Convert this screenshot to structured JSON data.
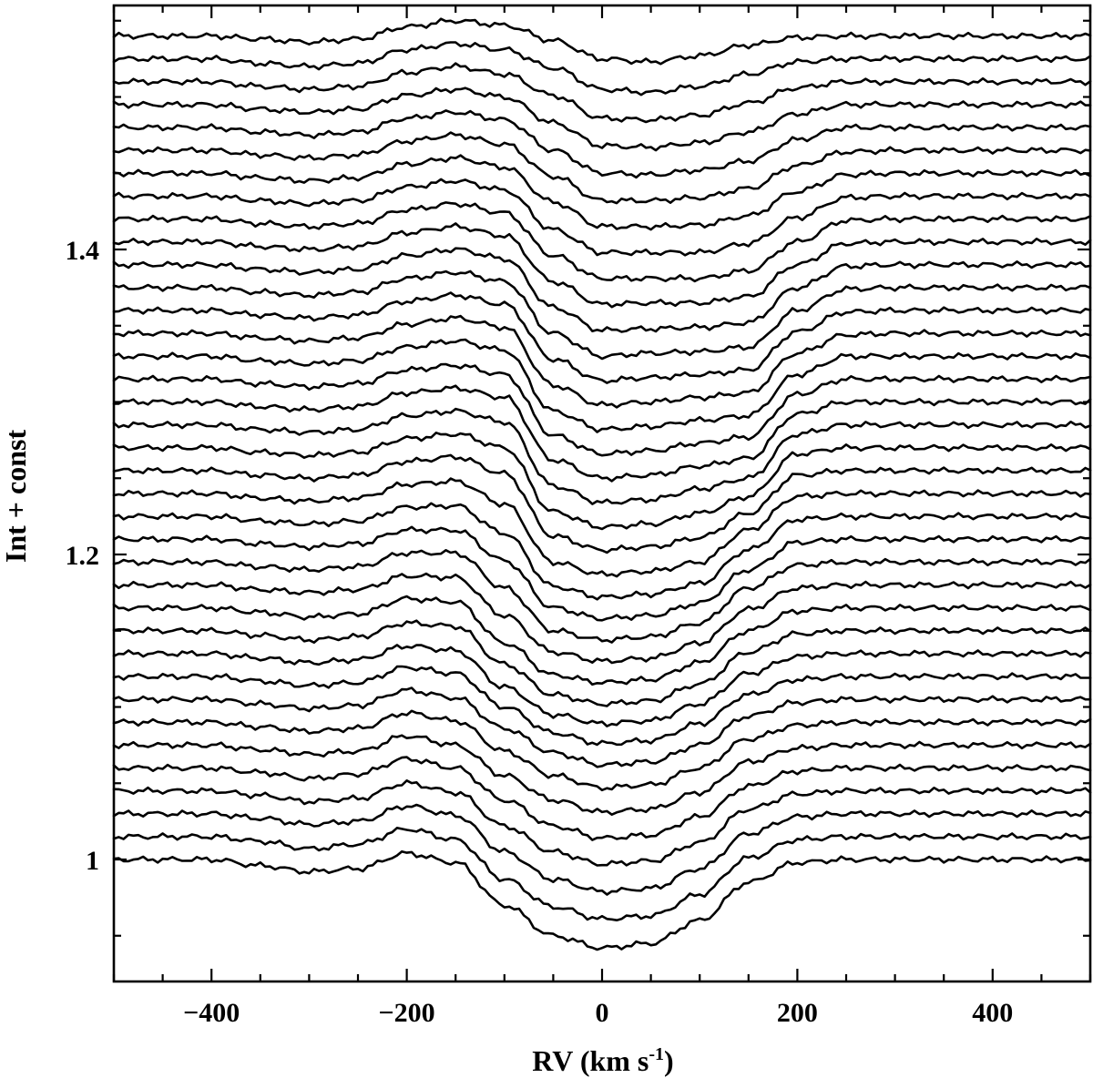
{
  "chart_data": {
    "type": "line",
    "title": "",
    "xlabel": "RV (km s",
    "xlabel_sup": "-1",
    "xlabel_close": ")",
    "ylabel": "Int + const",
    "xlim": [
      -500,
      500
    ],
    "ylim": [
      0.92,
      1.56
    ],
    "x_ticks_major": [
      -400,
      -200,
      0,
      200,
      400
    ],
    "x_tick_labels": [
      "−400",
      "−200",
      "0",
      "200",
      "400"
    ],
    "y_ticks_major": [
      1.0,
      1.2,
      1.4
    ],
    "y_tick_labels": [
      "1",
      "1.2",
      "1.4"
    ],
    "x_ticks_minor_step": 50,
    "y_ticks_minor_step": 0.05,
    "grid": false,
    "legend": "none",
    "n_profiles": 37,
    "profile_offset_step": 0.015,
    "continuum_level": 1.0,
    "rv_sampling": [
      -500,
      -450,
      -400,
      -350,
      -300,
      -250,
      -200,
      -150,
      -100,
      -50,
      0,
      50,
      100,
      150,
      200,
      250,
      300,
      350,
      400,
      450,
      500
    ],
    "series": [
      {
        "values": [
          1.0,
          1.0,
          1.0,
          0.996,
          0.992,
          0.994,
          1.004,
          0.998,
          0.97,
          0.95,
          0.942,
          0.945,
          0.96,
          0.985,
          0.998,
          1.0,
          1.0,
          1.0,
          1.0,
          1.0,
          1.0
        ]
      },
      {
        "values": [
          1.0,
          1.0,
          1.0,
          0.997,
          0.992,
          0.995,
          1.005,
          0.998,
          0.972,
          0.954,
          0.946,
          0.948,
          0.962,
          0.986,
          0.998,
          1.0,
          1.0,
          1.0,
          1.0,
          1.0,
          1.0
        ]
      },
      {
        "values": [
          1.0,
          1.0,
          1.0,
          0.997,
          0.993,
          0.995,
          1.005,
          0.999,
          0.975,
          0.957,
          0.949,
          0.951,
          0.964,
          0.987,
          0.998,
          1.0,
          1.0,
          1.0,
          1.0,
          1.0,
          1.0
        ]
      },
      {
        "values": [
          1.0,
          1.0,
          1.0,
          0.997,
          0.993,
          0.995,
          1.005,
          0.999,
          0.977,
          0.96,
          0.952,
          0.954,
          0.966,
          0.988,
          0.998,
          1.0,
          1.0,
          1.0,
          1.0,
          1.0,
          1.0
        ]
      },
      {
        "values": [
          1.0,
          1.0,
          1.0,
          0.997,
          0.993,
          0.996,
          1.006,
          1.0,
          0.979,
          0.962,
          0.954,
          0.956,
          0.968,
          0.988,
          0.998,
          1.0,
          1.0,
          1.0,
          1.0,
          1.0,
          1.0
        ]
      },
      {
        "values": [
          1.0,
          1.0,
          1.0,
          0.997,
          0.994,
          0.996,
          1.006,
          1.0,
          0.98,
          0.964,
          0.956,
          0.958,
          0.969,
          0.989,
          0.998,
          1.0,
          1.0,
          1.0,
          1.0,
          1.0,
          1.0
        ]
      },
      {
        "values": [
          1.0,
          1.0,
          1.0,
          0.997,
          0.994,
          0.996,
          1.006,
          1.001,
          0.981,
          0.965,
          0.957,
          0.959,
          0.97,
          0.989,
          0.998,
          1.0,
          1.0,
          1.0,
          1.0,
          1.0,
          1.0
        ]
      },
      {
        "values": [
          1.0,
          1.0,
          1.0,
          0.997,
          0.994,
          0.996,
          1.006,
          1.001,
          0.981,
          0.965,
          0.957,
          0.959,
          0.97,
          0.989,
          0.998,
          1.0,
          1.0,
          1.0,
          1.0,
          1.0,
          1.0
        ]
      },
      {
        "values": [
          1.0,
          1.0,
          1.0,
          0.997,
          0.994,
          0.996,
          1.006,
          1.002,
          0.98,
          0.963,
          0.956,
          0.958,
          0.969,
          0.988,
          0.998,
          1.0,
          1.0,
          1.0,
          1.0,
          1.0,
          1.0
        ]
      },
      {
        "values": [
          1.0,
          1.0,
          1.0,
          0.997,
          0.994,
          0.996,
          1.005,
          1.002,
          0.978,
          0.96,
          0.954,
          0.956,
          0.967,
          0.987,
          0.998,
          1.0,
          1.0,
          1.0,
          1.0,
          1.0,
          1.0
        ]
      },
      {
        "values": [
          1.0,
          1.0,
          1.0,
          0.997,
          0.994,
          0.996,
          1.005,
          1.003,
          0.978,
          0.958,
          0.952,
          0.954,
          0.965,
          0.986,
          0.998,
          1.0,
          1.0,
          1.0,
          1.0,
          1.0,
          1.0
        ]
      },
      {
        "values": [
          1.0,
          1.0,
          1.0,
          0.997,
          0.994,
          0.996,
          1.006,
          1.004,
          0.977,
          0.956,
          0.951,
          0.953,
          0.964,
          0.985,
          0.998,
          1.0,
          1.0,
          1.0,
          1.0,
          1.0,
          1.0
        ]
      },
      {
        "values": [
          1.0,
          1.0,
          1.0,
          0.997,
          0.995,
          0.997,
          1.006,
          1.005,
          0.98,
          0.956,
          0.95,
          0.952,
          0.962,
          0.984,
          0.998,
          1.0,
          1.0,
          1.0,
          1.0,
          1.0,
          1.0
        ]
      },
      {
        "values": [
          1.0,
          1.0,
          1.0,
          0.997,
          0.995,
          0.997,
          1.006,
          1.006,
          0.983,
          0.955,
          0.949,
          0.951,
          0.96,
          0.983,
          0.998,
          1.0,
          1.0,
          1.0,
          1.0,
          1.0,
          1.0
        ]
      },
      {
        "values": [
          1.0,
          1.0,
          1.0,
          0.997,
          0.995,
          0.997,
          1.006,
          1.006,
          0.986,
          0.955,
          0.948,
          0.95,
          0.958,
          0.98,
          0.998,
          1.0,
          1.0,
          1.0,
          1.0,
          1.0,
          1.0
        ]
      },
      {
        "values": [
          1.0,
          1.0,
          1.0,
          0.997,
          0.995,
          0.997,
          1.006,
          1.007,
          0.989,
          0.954,
          0.947,
          0.949,
          0.956,
          0.978,
          0.998,
          1.0,
          1.0,
          1.0,
          1.0,
          1.0,
          1.0
        ]
      },
      {
        "values": [
          1.0,
          1.0,
          1.0,
          0.997,
          0.995,
          0.997,
          1.006,
          1.008,
          0.993,
          0.955,
          0.947,
          0.949,
          0.955,
          0.976,
          0.998,
          1.0,
          1.0,
          1.0,
          1.0,
          1.0,
          1.0
        ]
      },
      {
        "values": [
          1.0,
          1.0,
          1.0,
          0.997,
          0.995,
          0.997,
          1.006,
          1.009,
          0.998,
          0.957,
          0.948,
          0.95,
          0.956,
          0.972,
          0.997,
          1.0,
          1.0,
          1.0,
          1.0,
          1.0,
          1.0
        ]
      },
      {
        "values": [
          1.0,
          1.0,
          1.0,
          0.997,
          0.995,
          0.997,
          1.006,
          1.009,
          1.0,
          0.958,
          0.948,
          0.95,
          0.957,
          0.968,
          0.996,
          1.0,
          1.0,
          1.0,
          1.0,
          1.0,
          1.0
        ]
      },
      {
        "values": [
          1.0,
          1.0,
          1.0,
          0.997,
          0.995,
          0.997,
          1.006,
          1.009,
          1.002,
          0.96,
          0.949,
          0.951,
          0.958,
          0.965,
          0.994,
          1.0,
          1.0,
          1.0,
          1.0,
          1.0,
          1.0
        ]
      },
      {
        "values": [
          1.0,
          1.0,
          1.0,
          0.997,
          0.995,
          0.997,
          1.006,
          1.009,
          1.003,
          0.962,
          0.95,
          0.952,
          0.958,
          0.963,
          0.992,
          1.0,
          1.0,
          1.0,
          1.0,
          1.0,
          1.0
        ]
      },
      {
        "values": [
          1.0,
          1.0,
          1.0,
          0.997,
          0.995,
          0.997,
          1.006,
          1.009,
          1.003,
          0.963,
          0.951,
          0.953,
          0.958,
          0.962,
          0.99,
          1.0,
          1.0,
          1.0,
          1.0,
          1.0,
          1.0
        ]
      },
      {
        "values": [
          1.0,
          1.0,
          1.0,
          0.997,
          0.995,
          0.997,
          1.006,
          1.01,
          1.004,
          0.964,
          0.952,
          0.954,
          0.958,
          0.961,
          0.988,
          1.0,
          1.0,
          1.0,
          1.0,
          1.0,
          1.0
        ]
      },
      {
        "values": [
          1.0,
          1.0,
          1.0,
          0.997,
          0.995,
          0.997,
          1.006,
          1.01,
          1.004,
          0.966,
          0.953,
          0.955,
          0.958,
          0.961,
          0.987,
          0.999,
          1.0,
          1.0,
          1.0,
          1.0,
          1.0
        ]
      },
      {
        "values": [
          1.0,
          1.0,
          1.0,
          0.997,
          0.995,
          0.997,
          1.006,
          1.01,
          1.004,
          0.968,
          0.954,
          0.956,
          0.958,
          0.961,
          0.986,
          0.999,
          1.0,
          1.0,
          1.0,
          1.0,
          1.0
        ]
      },
      {
        "values": [
          1.0,
          1.0,
          1.0,
          0.997,
          0.995,
          0.997,
          1.006,
          1.01,
          1.004,
          0.97,
          0.955,
          0.957,
          0.958,
          0.961,
          0.985,
          0.999,
          1.0,
          1.0,
          1.0,
          1.0,
          1.0
        ]
      },
      {
        "values": [
          1.0,
          1.0,
          1.0,
          0.997,
          0.995,
          0.997,
          1.006,
          1.01,
          1.004,
          0.972,
          0.957,
          0.958,
          0.959,
          0.962,
          0.985,
          0.999,
          1.0,
          1.0,
          1.0,
          1.0,
          1.0
        ]
      },
      {
        "values": [
          1.0,
          1.0,
          1.0,
          0.997,
          0.995,
          0.997,
          1.006,
          1.01,
          1.004,
          0.974,
          0.959,
          0.96,
          0.96,
          0.964,
          0.985,
          0.999,
          1.0,
          1.0,
          1.0,
          1.0,
          1.0
        ]
      },
      {
        "values": [
          1.0,
          1.0,
          1.0,
          0.997,
          0.995,
          0.997,
          1.006,
          1.01,
          1.004,
          0.976,
          0.961,
          0.961,
          0.961,
          0.966,
          0.985,
          0.999,
          1.0,
          1.0,
          1.0,
          1.0,
          1.0
        ]
      },
      {
        "values": [
          1.0,
          1.0,
          1.0,
          0.997,
          0.995,
          0.997,
          1.006,
          1.01,
          1.004,
          0.978,
          0.963,
          0.963,
          0.963,
          0.969,
          0.986,
          0.999,
          1.0,
          1.0,
          1.0,
          1.0,
          1.0
        ]
      },
      {
        "values": [
          1.0,
          1.0,
          1.0,
          0.997,
          0.995,
          0.997,
          1.006,
          1.01,
          1.004,
          0.981,
          0.965,
          0.965,
          0.966,
          0.972,
          0.988,
          0.999,
          1.0,
          1.0,
          1.0,
          1.0,
          1.0
        ]
      },
      {
        "values": [
          1.0,
          1.0,
          1.0,
          0.997,
          0.995,
          0.997,
          1.006,
          1.01,
          1.004,
          0.983,
          0.967,
          0.967,
          0.969,
          0.975,
          0.99,
          0.999,
          1.0,
          1.0,
          1.0,
          1.0,
          1.0
        ]
      },
      {
        "values": [
          1.0,
          1.0,
          1.0,
          0.997,
          0.995,
          0.997,
          1.006,
          1.01,
          1.005,
          0.985,
          0.97,
          0.969,
          0.972,
          0.978,
          0.992,
          1.0,
          1.0,
          1.0,
          1.0,
          1.0,
          1.0
        ]
      },
      {
        "values": [
          1.0,
          1.0,
          1.0,
          0.997,
          0.995,
          0.997,
          1.006,
          1.01,
          1.005,
          0.988,
          0.973,
          0.972,
          0.975,
          0.982,
          0.994,
          1.0,
          1.0,
          1.0,
          1.0,
          1.0,
          1.0
        ]
      },
      {
        "values": [
          1.0,
          1.0,
          1.0,
          0.997,
          0.995,
          0.997,
          1.006,
          1.01,
          1.005,
          0.991,
          0.976,
          0.975,
          0.978,
          0.986,
          0.996,
          1.0,
          1.0,
          1.0,
          1.0,
          1.0,
          1.0
        ]
      },
      {
        "values": [
          1.0,
          1.0,
          1.0,
          0.997,
          0.995,
          0.997,
          1.006,
          1.01,
          1.006,
          0.994,
          0.98,
          0.978,
          0.982,
          0.99,
          0.998,
          1.0,
          1.0,
          1.0,
          1.0,
          1.0,
          1.0
        ]
      },
      {
        "values": [
          1.0,
          1.0,
          1.0,
          0.998,
          0.996,
          0.998,
          1.006,
          1.01,
          1.007,
          0.997,
          0.985,
          0.983,
          0.987,
          0.994,
          0.999,
          1.0,
          1.0,
          1.0,
          1.0,
          1.0,
          1.0
        ]
      }
    ]
  },
  "colors": {
    "line": "#000000",
    "background": "#ffffff"
  }
}
